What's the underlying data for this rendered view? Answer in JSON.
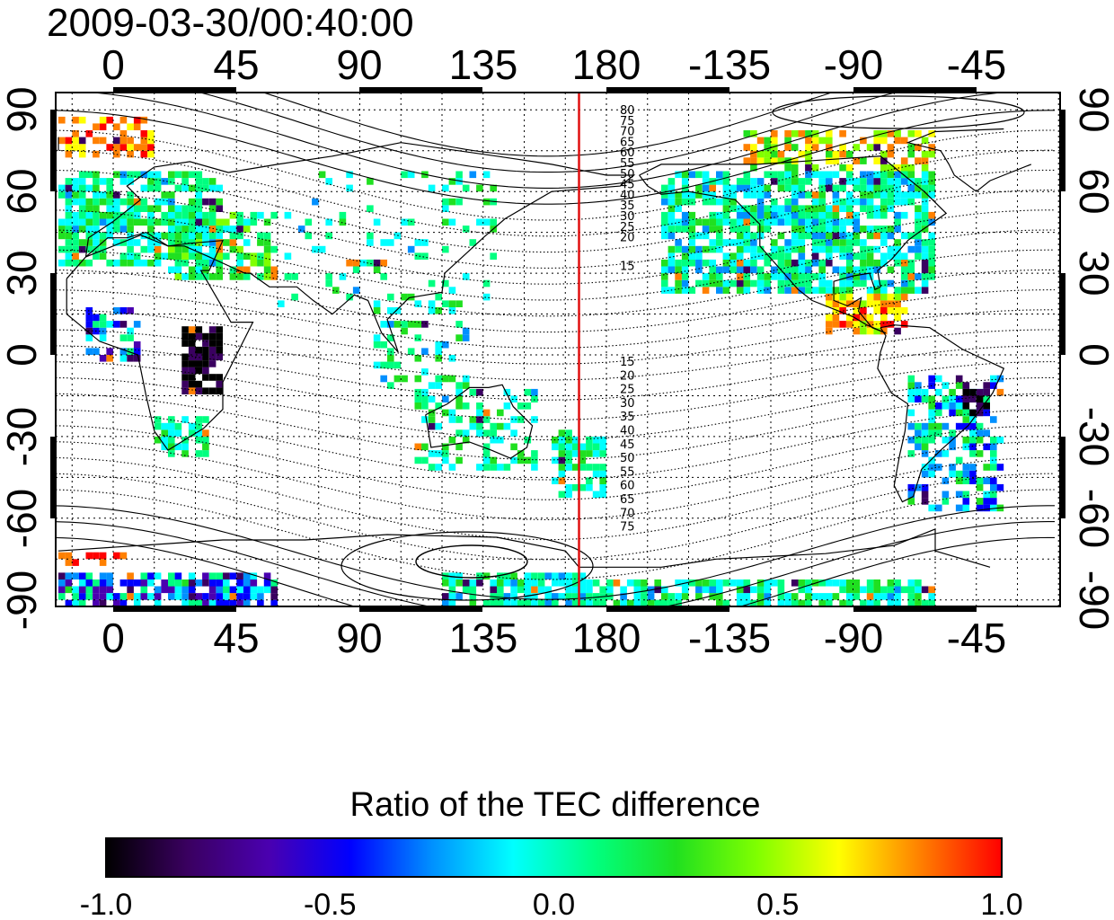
{
  "title": "2009-03-30/00:40:00",
  "colorbar": {
    "title": "Ratio of the TEC difference",
    "ticks": [
      "-1.0",
      "-0.5",
      "0.0",
      "0.5",
      "1.0"
    ],
    "range": [
      -1.0,
      1.0
    ],
    "colors": [
      "#000000",
      "#3a0060",
      "#4a00b0",
      "#0000ff",
      "#0090ff",
      "#00ffff",
      "#00ff80",
      "#20e020",
      "#80ff00",
      "#ffff00",
      "#ff8000",
      "#ff0000"
    ]
  },
  "map": {
    "lon_ticks": [
      "0",
      "45",
      "90",
      "135",
      "180",
      "-135",
      "-90",
      "-45"
    ],
    "lat_ticks_left": [
      "90",
      "60",
      "30",
      "0",
      "-30",
      "-60",
      "-90"
    ],
    "lat_ticks_right": [
      "90",
      "60",
      "30",
      "0",
      "-30",
      "-60",
      "-90"
    ],
    "marker_line_lon": 170,
    "marker_line_color": "#e01010",
    "contour_labels_north": [
      "80",
      "75",
      "70",
      "65",
      "60",
      "55",
      "50",
      "45",
      "40",
      "35",
      "30",
      "25",
      "20",
      "15"
    ],
    "contour_labels_south": [
      "15",
      "20",
      "25",
      "30",
      "35",
      "40",
      "45",
      "50",
      "55",
      "60",
      "65",
      "70",
      "75"
    ]
  }
}
